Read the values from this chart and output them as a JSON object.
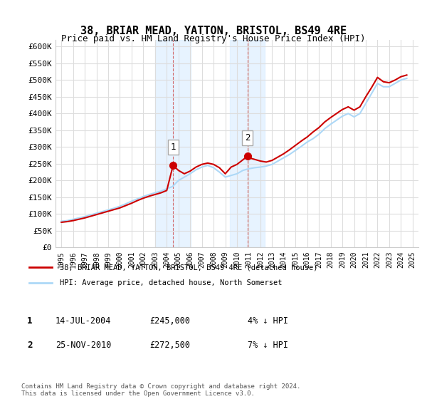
{
  "title": "38, BRIAR MEAD, YATTON, BRISTOL, BS49 4RE",
  "subtitle": "Price paid vs. HM Land Registry's House Price Index (HPI)",
  "legend_line1": "38, BRIAR MEAD, YATTON, BRISTOL, BS49 4RE (detached house)",
  "legend_line2": "HPI: Average price, detached house, North Somerset",
  "footer": "Contains HM Land Registry data © Crown copyright and database right 2024.\nThis data is licensed under the Open Government Licence v3.0.",
  "sale1_label": "1",
  "sale1_date": "14-JUL-2004",
  "sale1_price": "£245,000",
  "sale1_hpi": "4% ↓ HPI",
  "sale1_year": 2004.54,
  "sale1_value": 245000,
  "sale2_label": "2",
  "sale2_date": "25-NOV-2010",
  "sale2_price": "£272,500",
  "sale2_hpi": "7% ↓ HPI",
  "sale2_year": 2010.9,
  "sale2_value": 272500,
  "ylim": [
    0,
    620000
  ],
  "xlim": [
    1994.5,
    2025.5
  ],
  "yticks": [
    0,
    50000,
    100000,
    150000,
    200000,
    250000,
    300000,
    350000,
    400000,
    450000,
    500000,
    550000,
    600000
  ],
  "ytick_labels": [
    "£0",
    "£50K",
    "£100K",
    "£150K",
    "£200K",
    "£250K",
    "£300K",
    "£350K",
    "£400K",
    "£450K",
    "£500K",
    "£550K",
    "£600K"
  ],
  "xticks": [
    1995,
    1996,
    1997,
    1998,
    1999,
    2000,
    2001,
    2002,
    2003,
    2004,
    2005,
    2006,
    2007,
    2008,
    2009,
    2010,
    2011,
    2012,
    2013,
    2014,
    2015,
    2016,
    2017,
    2018,
    2019,
    2020,
    2021,
    2022,
    2023,
    2024,
    2025
  ],
  "hpi_color": "#add8f7",
  "price_color": "#cc0000",
  "shade1_color": "#ddeeff",
  "shade2_color": "#ddeeff",
  "background_color": "#ffffff",
  "grid_color": "#dddddd",
  "hpi_x": [
    1995,
    1995.5,
    1996,
    1996.5,
    1997,
    1997.5,
    1998,
    1998.5,
    1999,
    1999.5,
    2000,
    2000.5,
    2001,
    2001.5,
    2002,
    2002.5,
    2003,
    2003.5,
    2004,
    2004.5,
    2005,
    2005.5,
    2006,
    2006.5,
    2007,
    2007.5,
    2008,
    2008.5,
    2009,
    2009.5,
    2010,
    2010.5,
    2011,
    2011.5,
    2012,
    2012.5,
    2013,
    2013.5,
    2014,
    2014.5,
    2015,
    2015.5,
    2016,
    2016.5,
    2017,
    2017.5,
    2018,
    2018.5,
    2019,
    2019.5,
    2020,
    2020.5,
    2021,
    2021.5,
    2022,
    2022.5,
    2023,
    2023.5,
    2024,
    2024.5
  ],
  "hpi_y": [
    78000,
    80000,
    84000,
    88000,
    92000,
    97000,
    102000,
    107000,
    112000,
    117000,
    123000,
    130000,
    138000,
    145000,
    152000,
    158000,
    163000,
    168000,
    175000,
    182000,
    200000,
    210000,
    220000,
    232000,
    240000,
    245000,
    238000,
    225000,
    210000,
    215000,
    220000,
    230000,
    235000,
    238000,
    240000,
    243000,
    248000,
    258000,
    268000,
    278000,
    290000,
    302000,
    315000,
    325000,
    338000,
    355000,
    368000,
    380000,
    392000,
    400000,
    390000,
    400000,
    430000,
    460000,
    490000,
    480000,
    480000,
    490000,
    500000,
    505000
  ],
  "price_x": [
    1995,
    1995.5,
    1996,
    1996.5,
    1997,
    1997.5,
    1998,
    1998.5,
    1999,
    1999.5,
    2000,
    2000.5,
    2001,
    2001.5,
    2002,
    2002.5,
    2003,
    2003.5,
    2004,
    2004.54,
    2005,
    2005.5,
    2006,
    2006.5,
    2007,
    2007.5,
    2008,
    2008.5,
    2009,
    2009.5,
    2010,
    2010.9,
    2011,
    2011.5,
    2012,
    2012.5,
    2013,
    2013.5,
    2014,
    2014.5,
    2015,
    2015.5,
    2016,
    2016.5,
    2017,
    2017.5,
    2018,
    2018.5,
    2019,
    2019.5,
    2020,
    2020.5,
    2021,
    2021.5,
    2022,
    2022.5,
    2023,
    2023.5,
    2024,
    2024.5
  ],
  "price_y": [
    75000,
    77000,
    80000,
    84000,
    88000,
    93000,
    98000,
    103000,
    108000,
    113000,
    118000,
    125000,
    132000,
    140000,
    147000,
    153000,
    158000,
    163000,
    170000,
    245000,
    230000,
    220000,
    228000,
    240000,
    248000,
    252000,
    248000,
    238000,
    220000,
    240000,
    248000,
    272500,
    268000,
    263000,
    258000,
    255000,
    260000,
    270000,
    280000,
    292000,
    305000,
    318000,
    330000,
    345000,
    358000,
    375000,
    388000,
    400000,
    412000,
    420000,
    410000,
    420000,
    450000,
    478000,
    508000,
    495000,
    492000,
    500000,
    510000,
    515000
  ]
}
